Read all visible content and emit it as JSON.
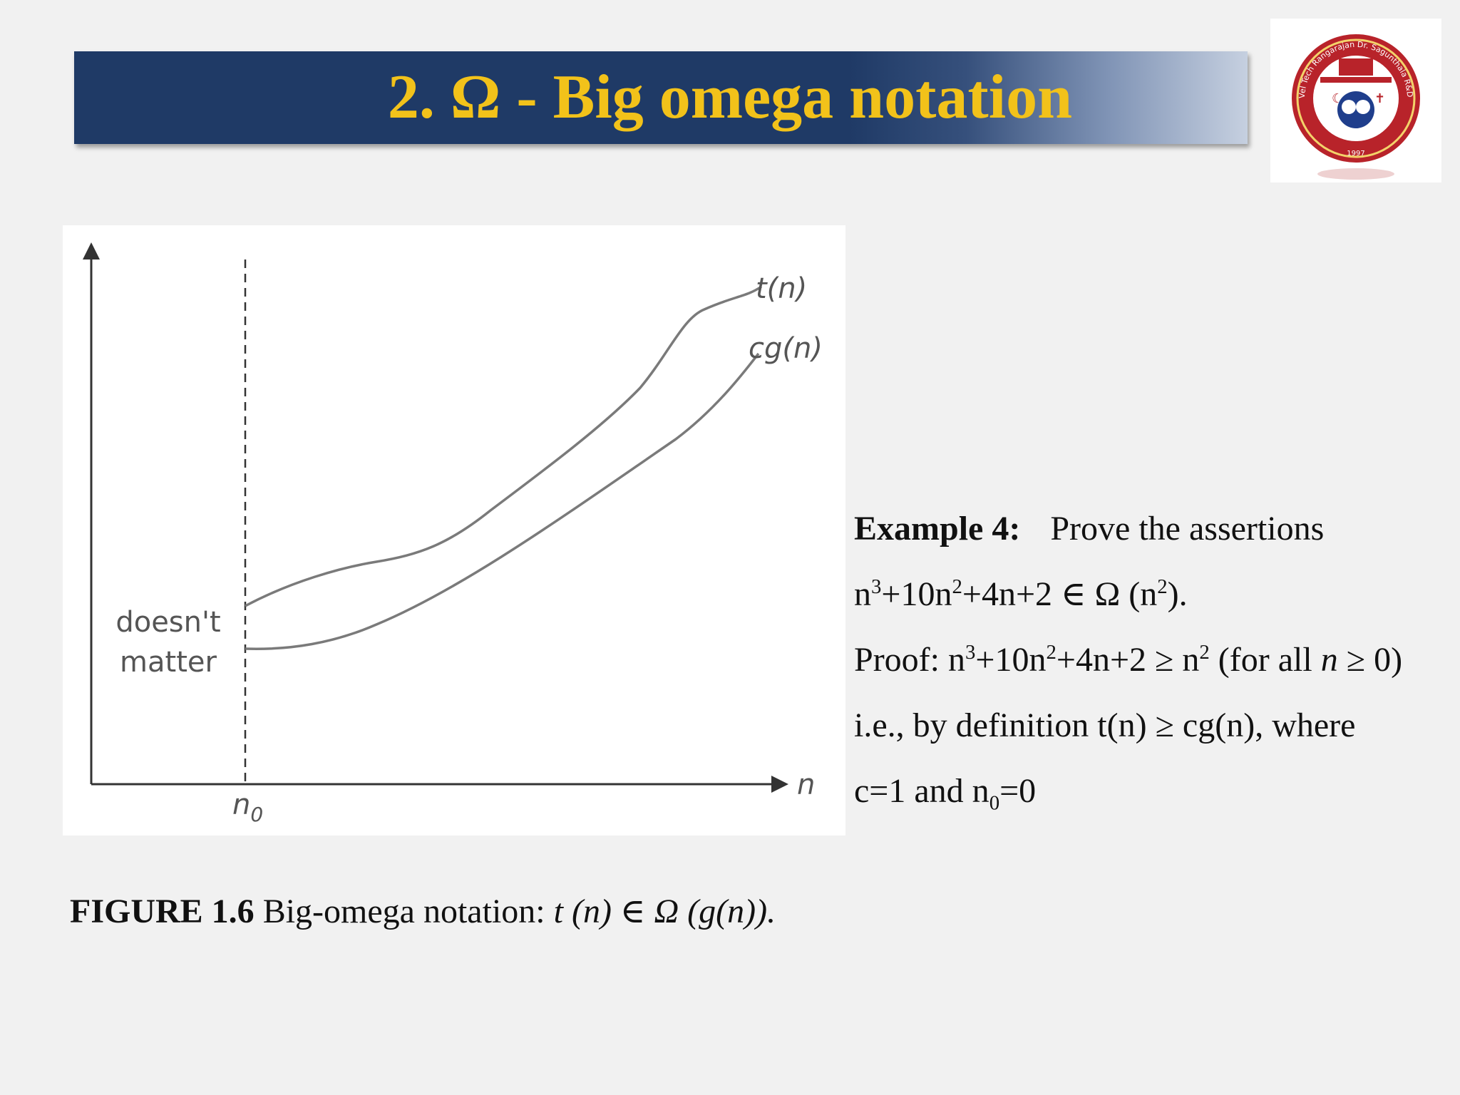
{
  "title": "2. Ω - Big omega notation",
  "logo": {
    "icon": "institute-seal-icon",
    "text": "Vel Tech Rangarajan Dr. Sagunthala R&D Institute of Science and Technology",
    "year": "1997"
  },
  "diagram": {
    "curve_upper_label": "t(n)",
    "curve_lower_label": "cg(n)",
    "left_region_label_line1": "doesn't",
    "left_region_label_line2": "matter",
    "x_axis_label": "n",
    "threshold_label_base": "n",
    "threshold_label_sub": "0",
    "colors": {
      "curve": "#7a7a7a",
      "axis": "#333333",
      "text": "#555555"
    }
  },
  "caption": {
    "bold": "FIGURE 1.6",
    "text": " Big-omega notation: ",
    "formula": "t (n) ∈ Ω (g(n))."
  },
  "example": {
    "heading": "Example 4:",
    "heading_rest": "Prove the assertions",
    "line2": {
      "a": "n",
      "a_sup": "3",
      "b": "+10n",
      "b_sup": "2",
      "c": "+4n+2 ∈ Ω (n",
      "c_sup": "2",
      "d": ")."
    },
    "line3": {
      "a": "Proof: n",
      "a_sup": "3",
      "b": "+10n",
      "b_sup": "2",
      "c": "+4n+2 ≥ n",
      "c_sup": "2",
      "d": " (for all ",
      "n": "n",
      "e": " ≥ 0)"
    },
    "line4": "i.e., by definition t(n) ≥ cg(n), where",
    "line5": {
      "a": "c=1 and n",
      "a_sub": "0",
      "b": "=0"
    }
  }
}
